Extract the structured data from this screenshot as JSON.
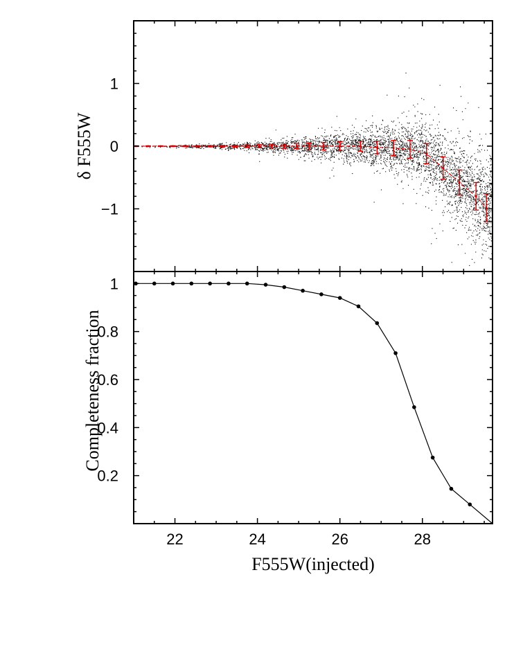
{
  "chart_data": [
    {
      "type": "scatter",
      "ylabel": "δ F555W",
      "xlabel": "",
      "xlim": [
        21.0,
        29.7
      ],
      "ylim": [
        -2.0,
        2.0
      ],
      "x_ticks": [
        22,
        24,
        26,
        28
      ],
      "y_ticks": [
        -1,
        0,
        1
      ],
      "y_tick_labels": [
        "−1",
        "0",
        "1"
      ],
      "scatter_color": "#000000",
      "errorbar_color": "#d40000",
      "series": [
        {
          "name": "",
          "x": [
            21.05,
            21.35,
            21.65,
            21.95,
            22.25,
            22.55,
            22.85,
            23.15,
            23.45,
            23.75,
            24.05,
            24.35,
            24.65,
            24.95,
            25.25,
            25.6,
            26.0,
            26.5,
            26.9,
            27.3,
            27.7,
            28.1,
            28.5,
            28.9,
            29.3,
            29.55
          ],
          "y": [
            0.0,
            0.0,
            0.0,
            0.0,
            0.0,
            0.0,
            0.0,
            0.0,
            0.0,
            0.0,
            0.0,
            0.0,
            0.0,
            0.0,
            0.0,
            0.0,
            0.0,
            0.0,
            -0.02,
            -0.03,
            -0.05,
            -0.12,
            -0.35,
            -0.58,
            -0.8,
            -0.98
          ],
          "yerr": [
            0.005,
            0.005,
            0.005,
            0.006,
            0.007,
            0.008,
            0.01,
            0.012,
            0.015,
            0.02,
            0.025,
            0.03,
            0.035,
            0.04,
            0.05,
            0.06,
            0.07,
            0.08,
            0.1,
            0.12,
            0.14,
            0.16,
            0.18,
            0.2,
            0.22,
            0.22
          ]
        }
      ]
    },
    {
      "type": "line",
      "ylabel": "Completeness fraction",
      "xlabel": "F555W(injected)",
      "xlim": [
        21.0,
        29.7
      ],
      "ylim": [
        0.0,
        1.05
      ],
      "x_ticks": [
        22,
        24,
        26,
        28
      ],
      "y_ticks": [
        0.2,
        0.4,
        0.6,
        0.8,
        1.0
      ],
      "y_tick_labels": [
        "0.2",
        "0.4",
        "0.6",
        "0.8",
        "1"
      ],
      "line_color": "#000000",
      "series": [
        {
          "name": "",
          "x": [
            21.05,
            21.5,
            21.95,
            22.4,
            22.85,
            23.3,
            23.75,
            24.2,
            24.65,
            25.1,
            25.55,
            26.0,
            26.45,
            26.9,
            27.35,
            27.8,
            28.25,
            28.7,
            29.15
          ],
          "y": [
            1.0,
            1.0,
            1.0,
            1.0,
            1.0,
            1.0,
            1.0,
            0.995,
            0.985,
            0.97,
            0.955,
            0.94,
            0.905,
            0.835,
            0.71,
            0.485,
            0.275,
            0.145,
            0.08
          ]
        }
      ]
    }
  ]
}
